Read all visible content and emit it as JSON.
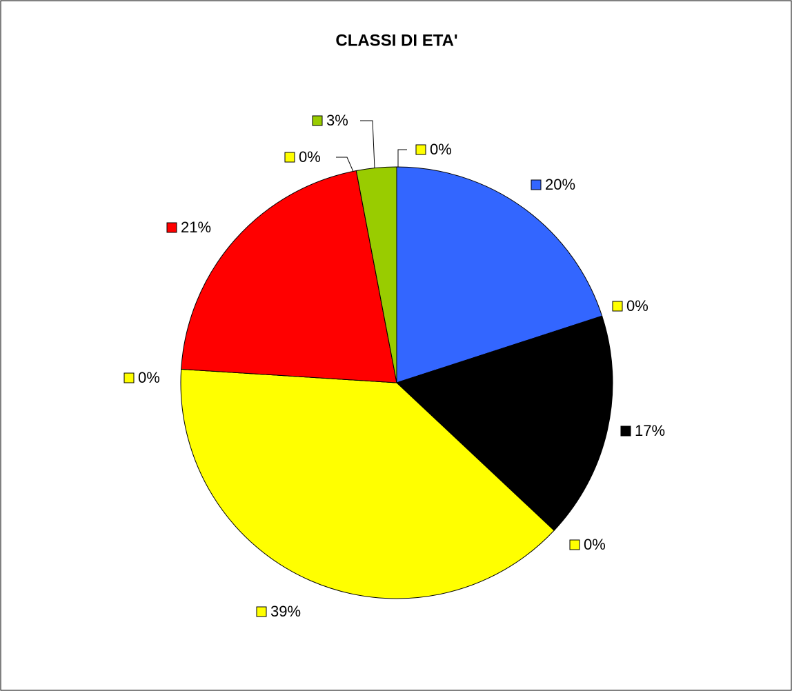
{
  "chart_data": {
    "type": "pie",
    "title": "CLASSI DI ETA'",
    "values": [
      20,
      0,
      17,
      0,
      39,
      0,
      21,
      0,
      3,
      0
    ],
    "value_labels": [
      "20%",
      "0%",
      "17%",
      "0%",
      "39%",
      "0%",
      "21%",
      "0%",
      "3%",
      "0%"
    ],
    "colors": [
      "#3366ff",
      "#ffff00",
      "#000000",
      "#ffff00",
      "#ffff00",
      "#ffff00",
      "#ff0000",
      "#ffff00",
      "#99cc00",
      "#ffff00"
    ]
  }
}
